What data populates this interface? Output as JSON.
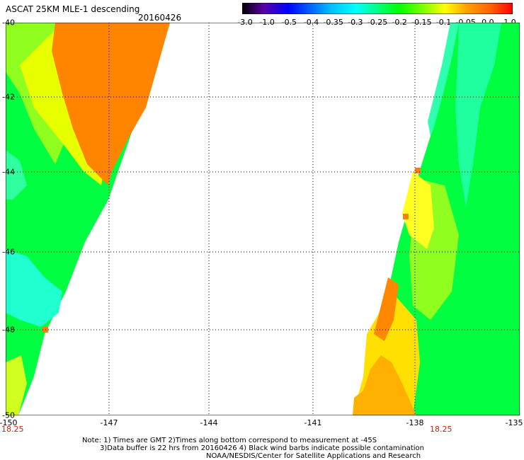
{
  "header": {
    "title": "ASCAT 25KM MLE-1 descending",
    "date": "20160426"
  },
  "colorbar": {
    "labels": [
      "-3.0",
      "-1.0",
      "-0.5",
      "-0.4",
      "-0.35",
      "-0.3",
      "-0.25",
      "-0.2",
      "-0.15",
      "-0.1",
      "-0.05",
      "0.0",
      "1.0"
    ],
    "colors": [
      "#000000",
      "#5a00a8",
      "#0000ff",
      "#0060ff",
      "#00c0ff",
      "#00ffff",
      "#00ff80",
      "#00ff00",
      "#80ff00",
      "#ffff00",
      "#ffa000",
      "#ff6000",
      "#ff0000"
    ]
  },
  "map": {
    "lat_labels": [
      "-40",
      "-42",
      "-44",
      "-46",
      "-48",
      "-50"
    ],
    "lon_labels": [
      "-150",
      "-147",
      "-144",
      "-141",
      "-138",
      "-135"
    ],
    "time_labels": [
      "18.25",
      "18.25"
    ],
    "swath_colors": {
      "orange": "#ff8000",
      "yellow": "#ffff00",
      "green": "#00ff40",
      "cyan": "#00ffff",
      "lime": "#80ff00"
    }
  },
  "notes": {
    "line1": "Note: 1) Times are GMT 2)Times along bottom correspond to measurement at -45S",
    "line2": "3)Data buffer is 22 hrs from 20160426 4) Black wind barbs indicate possible contamination",
    "line3": "NOAA/NESDIS/Center for Satellite Applications and Research"
  }
}
